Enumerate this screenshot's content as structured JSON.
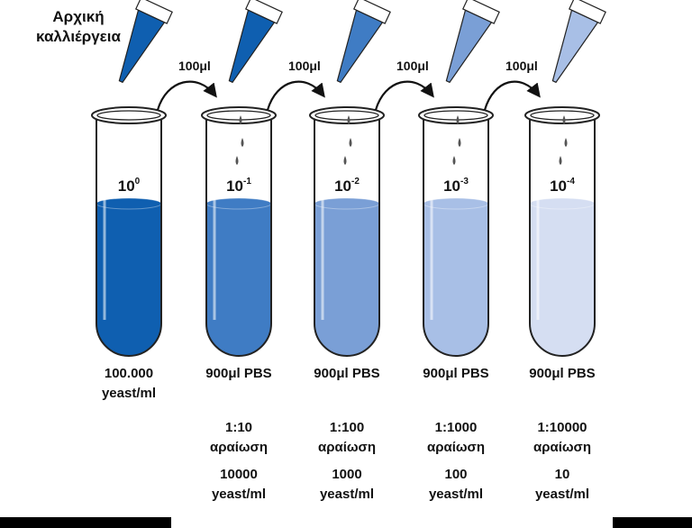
{
  "title": {
    "line1": "Αρχική",
    "line2": "καλλιέργεια"
  },
  "transfer_volume": "100μl",
  "tubes": [
    {
      "base": "10",
      "exponent": "0",
      "fill": "#0f5fb0",
      "tip_fill": "#0f5fb0",
      "label1": "100.000",
      "label2": "yeast/ml",
      "ratio1": "",
      "ratio2": "",
      "conc1": "",
      "conc2": ""
    },
    {
      "base": "10",
      "exponent": "-1",
      "fill": "#3f7cc4",
      "tip_fill": "#0f5fb0",
      "label1": "900μl PBS",
      "label2": "",
      "ratio1": "1:10",
      "ratio2": "αραίωση",
      "conc1": "10000",
      "conc2": "yeast/ml"
    },
    {
      "base": "10",
      "exponent": "-2",
      "fill": "#7a9fd6",
      "tip_fill": "#3f7cc4",
      "label1": "900μl PBS",
      "label2": "",
      "ratio1": "1:100",
      "ratio2": "αραίωση",
      "conc1": "1000",
      "conc2": "yeast/ml"
    },
    {
      "base": "10",
      "exponent": "-3",
      "fill": "#a8bfe6",
      "tip_fill": "#7a9fd6",
      "label1": "900μl PBS",
      "label2": "",
      "ratio1": "1:1000",
      "ratio2": "αραίωση",
      "conc1": "100",
      "conc2": "yeast/ml"
    },
    {
      "base": "10",
      "exponent": "-4",
      "fill": "#d5def2",
      "tip_fill": "#a8bfe6",
      "label1": "900μl PBS",
      "label2": "",
      "ratio1": "1:10000",
      "ratio2": "αραίωση",
      "conc1": "10",
      "conc2": "yeast/ml"
    }
  ],
  "colors": {
    "outline": "#222222",
    "drop": "#555555",
    "arrow": "#111111"
  }
}
